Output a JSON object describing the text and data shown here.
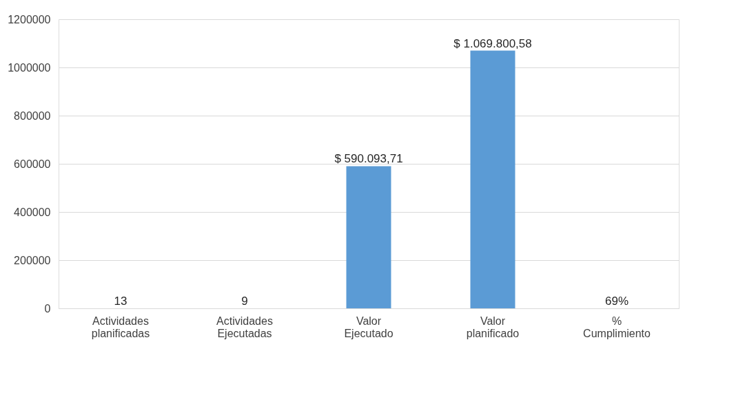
{
  "chart_data": {
    "type": "bar",
    "categories": [
      "Actividades planificadas",
      "Actividades Ejecutadas",
      "Valor Ejecutado",
      "Valor planificado",
      "% Cumplimiento"
    ],
    "values": [
      13,
      9,
      590093.71,
      1069800.58,
      69
    ],
    "value_labels": [
      "13",
      "9",
      "$ 590.093,71",
      "$ 1.069.800,58",
      "69%"
    ],
    "color": "#5b9bd5",
    "ylim": [
      0,
      1200000
    ],
    "yticks": [
      0,
      200000,
      400000,
      600000,
      800000,
      1000000,
      1200000
    ],
    "grid": "y"
  }
}
